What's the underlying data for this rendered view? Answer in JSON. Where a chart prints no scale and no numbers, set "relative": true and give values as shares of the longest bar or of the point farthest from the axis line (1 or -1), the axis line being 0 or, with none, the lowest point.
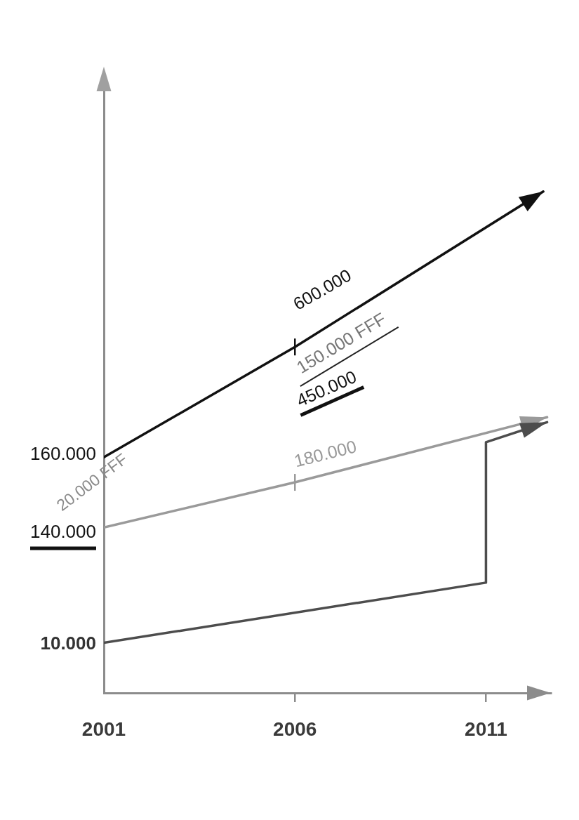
{
  "chart_data": {
    "type": "line",
    "relative": true,
    "xlim": [
      2001,
      2012.7
    ],
    "xticks": [
      2001,
      2006,
      2011
    ],
    "grid": false,
    "series": [
      {
        "color": "#111111",
        "x": [
          2001,
          2006,
          2012.5
        ],
        "values": [
          0.47,
          0.69,
          1
        ]
      },
      {
        "color": "#9a9a9a",
        "x": [
          2001,
          2006,
          2012.6
        ],
        "values": [
          0.33,
          0.42,
          0.55
        ]
      },
      {
        "color": "#4d4d4d",
        "x": [
          2001,
          2011,
          2011,
          2012.6
        ],
        "values": [
          0.1,
          0.22,
          0.5,
          0.54
        ]
      }
    ],
    "annotations": [
      "600.000",
      "150.000 FFF",
      "450.000",
      "160.000",
      "20.000 FFF",
      "180.000",
      "140.000",
      "10.000"
    ]
  }
}
